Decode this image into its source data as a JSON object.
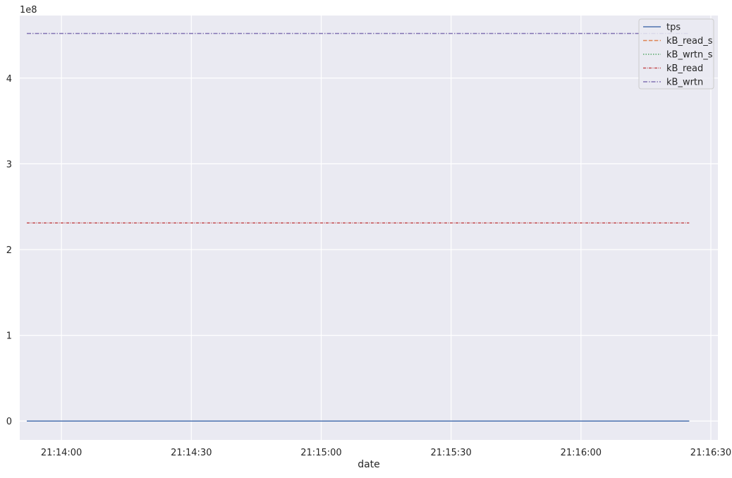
{
  "chart_data": {
    "type": "line",
    "title": "",
    "xlabel": "date",
    "ylabel": "",
    "y_offset_label": "1e8",
    "x_ticks": [
      "21:14:00",
      "21:14:30",
      "21:15:00",
      "21:15:30",
      "21:16:00",
      "21:16:30"
    ],
    "y_ticks": [
      "0",
      "1",
      "2",
      "3",
      "4"
    ],
    "x_range": [
      "21:13:52",
      "21:16:30"
    ],
    "ylim": [
      -22000000,
      473000000
    ],
    "x": [
      "21:13:52",
      "21:16:25"
    ],
    "grid": true,
    "legend_position": "top-right",
    "series": [
      {
        "name": "tps",
        "values": [
          0,
          0
        ],
        "color": "#4c72b0",
        "dash": "solid"
      },
      {
        "name": "kB_read_s",
        "values": [
          0,
          0
        ],
        "color": "#dd8452",
        "dash": "dashed"
      },
      {
        "name": "kB_wrtn_s",
        "values": [
          0,
          0
        ],
        "color": "#55a868",
        "dash": "dotted"
      },
      {
        "name": "kB_read",
        "values": [
          231000000,
          231000000
        ],
        "color": "#c44e52",
        "dash": "densely-dashdotted"
      },
      {
        "name": "kB_wrtn",
        "values": [
          452000000,
          452000000
        ],
        "color": "#8172b3",
        "dash": "dashdot"
      }
    ]
  }
}
